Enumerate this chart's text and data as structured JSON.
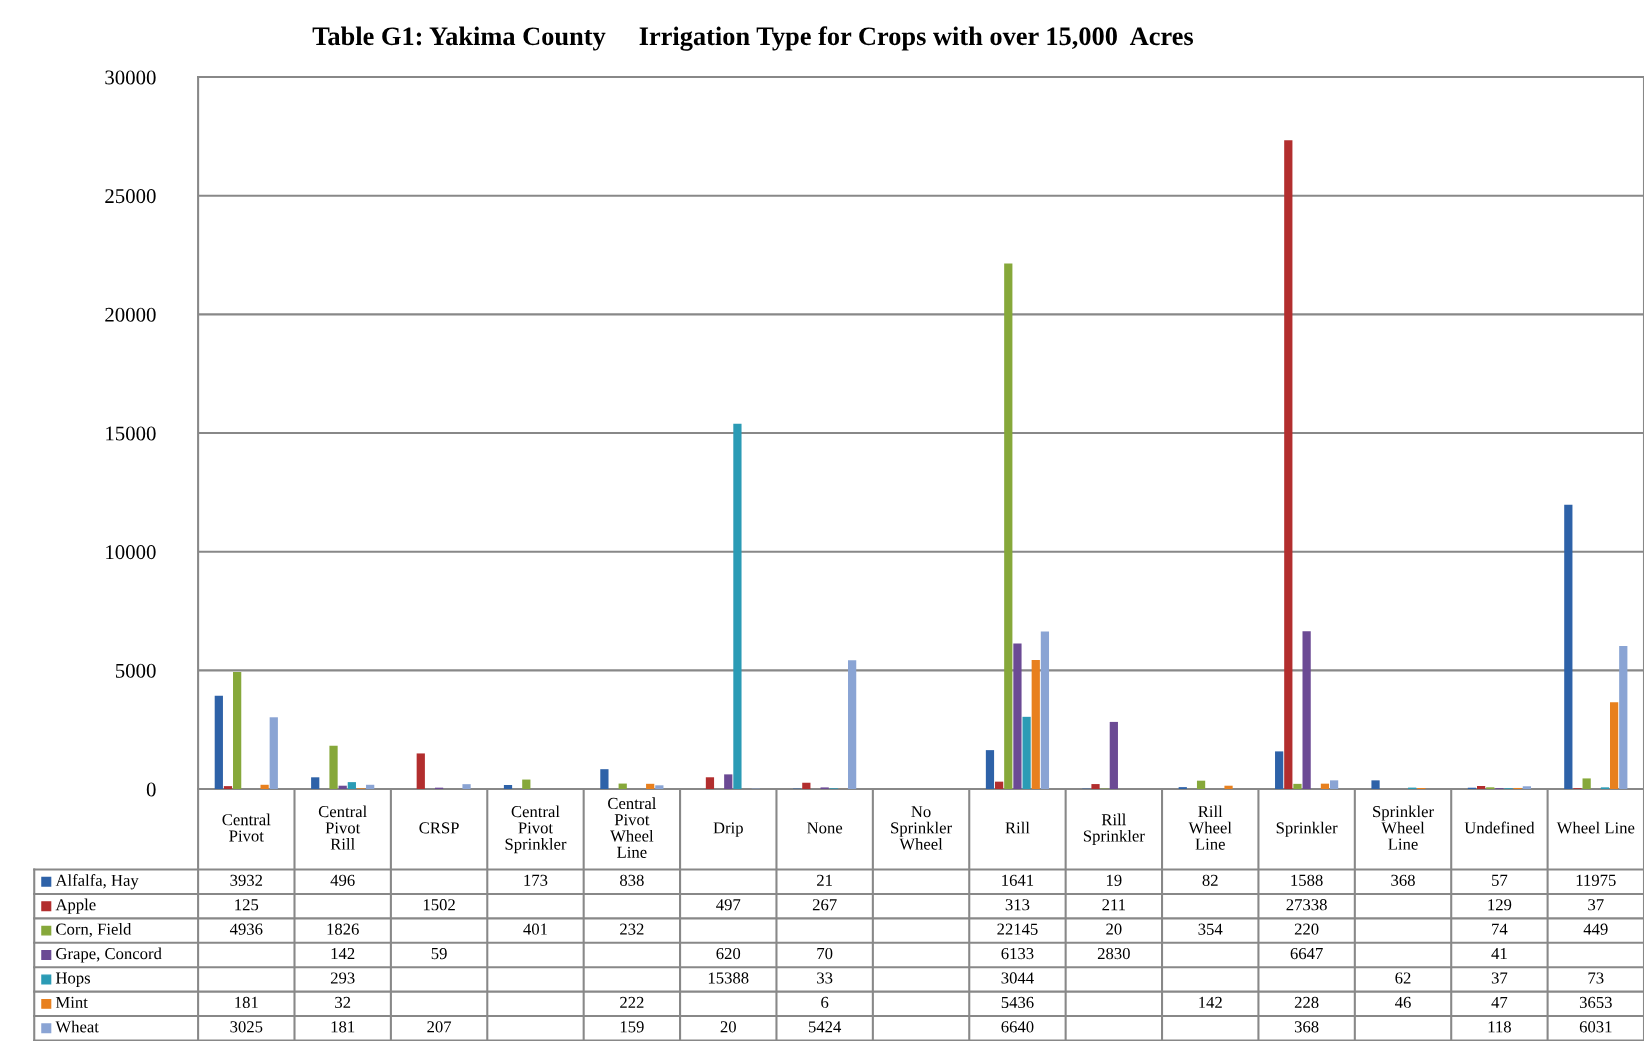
{
  "chart_data": {
    "type": "bar",
    "title": "Table G1: Yakima County     Irrigation Type for Crops with over 15,000  Acres",
    "categories": [
      "Central Pivot",
      "Central Pivot Rill",
      "CRSP",
      "Central Pivot Sprinkler",
      "Central Pivot Wheel Line",
      "Drip",
      "None",
      "No Sprinkler Wheel",
      "Rill",
      "Rill Sprinkler",
      "Rill Wheel Line",
      "Sprinkler",
      "Sprinkler Wheel Line",
      "Undefined",
      "Wheel Line"
    ],
    "series": [
      {
        "name": "Alfalfa, Hay",
        "color": "#2e62a8",
        "values": [
          3932,
          496,
          null,
          173,
          838,
          null,
          21,
          null,
          1641,
          19,
          82,
          1588,
          368,
          57,
          11975
        ]
      },
      {
        "name": "Apple",
        "color": "#b22e2e",
        "values": [
          125,
          null,
          1502,
          null,
          null,
          497,
          267,
          null,
          313,
          211,
          null,
          27338,
          null,
          129,
          37
        ]
      },
      {
        "name": "Corn, Field",
        "color": "#86a83a",
        "values": [
          4936,
          1826,
          null,
          401,
          232,
          null,
          null,
          null,
          22145,
          20,
          354,
          220,
          null,
          74,
          449
        ]
      },
      {
        "name": "Grape, Concord",
        "color": "#6b4a94",
        "values": [
          null,
          142,
          59,
          null,
          null,
          620,
          70,
          null,
          6133,
          2830,
          null,
          6647,
          null,
          41,
          null
        ]
      },
      {
        "name": "Hops",
        "color": "#2b9bb5",
        "values": [
          null,
          293,
          null,
          null,
          null,
          15388,
          33,
          null,
          3044,
          null,
          null,
          null,
          62,
          37,
          73
        ]
      },
      {
        "name": "Mint",
        "color": "#e8801e",
        "values": [
          181,
          32,
          null,
          null,
          222,
          null,
          6,
          null,
          5436,
          null,
          142,
          228,
          46,
          47,
          3653
        ]
      },
      {
        "name": "Wheat",
        "color": "#8aa4d4",
        "values": [
          3025,
          181,
          207,
          null,
          159,
          20,
          5424,
          null,
          6640,
          null,
          null,
          368,
          null,
          118,
          6031
        ]
      }
    ],
    "ylim": [
      0,
      30000
    ],
    "yticks": [
      0,
      5000,
      10000,
      15000,
      20000,
      25000,
      30000
    ],
    "grid": "y",
    "data_labels": true,
    "legend": "bottom left"
  }
}
